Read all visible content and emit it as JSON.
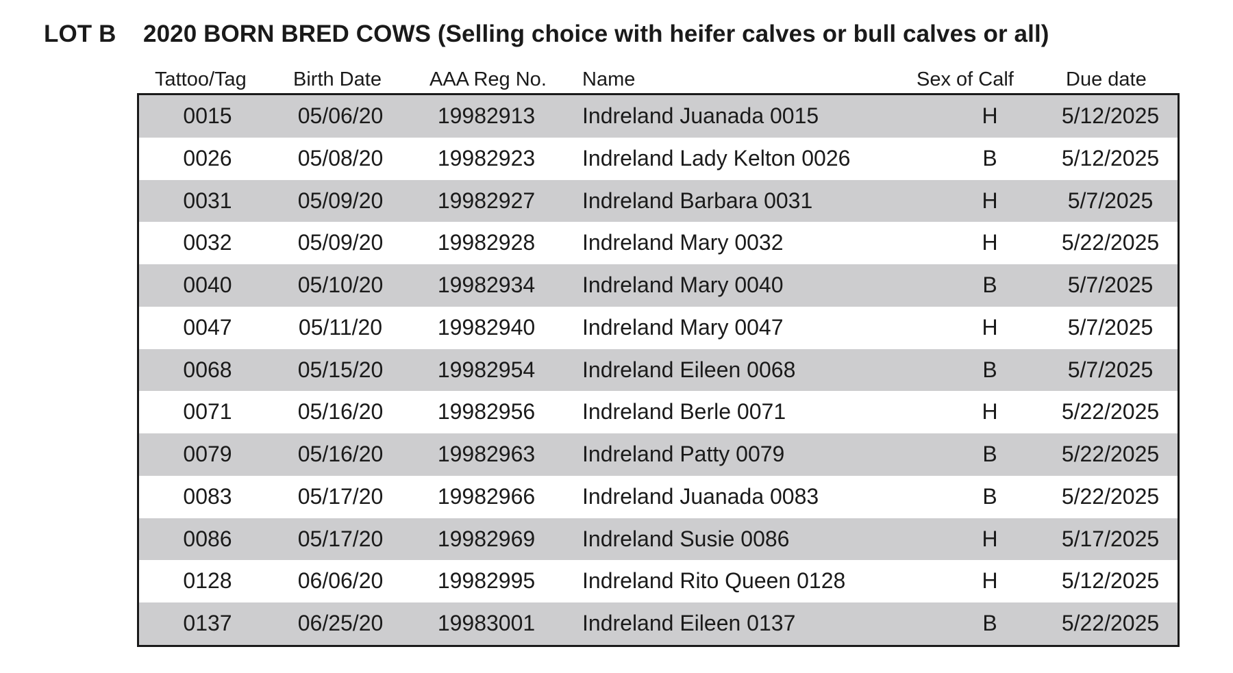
{
  "title": {
    "lot": "LOT B",
    "text": "2020 BORN BRED COWS (Selling choice with heifer calves or bull calves or all)"
  },
  "columns": [
    "Tattoo/Tag",
    "Birth Date",
    "AAA Reg No.",
    "Name",
    "Sex of Calf",
    "Due date"
  ],
  "rows": [
    {
      "tag": "0015",
      "birth": "05/06/20",
      "reg": "19982913",
      "name": "Indreland Juanada 0015",
      "sex": "H",
      "due": "5/12/2025"
    },
    {
      "tag": "0026",
      "birth": "05/08/20",
      "reg": "19982923",
      "name": "Indreland Lady Kelton 0026",
      "sex": "B",
      "due": "5/12/2025"
    },
    {
      "tag": "0031",
      "birth": "05/09/20",
      "reg": "19982927",
      "name": "Indreland Barbara 0031",
      "sex": "H",
      "due": "5/7/2025"
    },
    {
      "tag": "0032",
      "birth": "05/09/20",
      "reg": "19982928",
      "name": "Indreland Mary 0032",
      "sex": "H",
      "due": "5/22/2025"
    },
    {
      "tag": "0040",
      "birth": "05/10/20",
      "reg": "19982934",
      "name": "Indreland Mary 0040",
      "sex": "B",
      "due": "5/7/2025"
    },
    {
      "tag": "0047",
      "birth": "05/11/20",
      "reg": "19982940",
      "name": "Indreland Mary 0047",
      "sex": "H",
      "due": "5/7/2025"
    },
    {
      "tag": "0068",
      "birth": "05/15/20",
      "reg": "19982954",
      "name": "Indreland Eileen 0068",
      "sex": "B",
      "due": "5/7/2025"
    },
    {
      "tag": "0071",
      "birth": "05/16/20",
      "reg": "19982956",
      "name": "Indreland Berle 0071",
      "sex": "H",
      "due": "5/22/2025"
    },
    {
      "tag": "0079",
      "birth": "05/16/20",
      "reg": "19982963",
      "name": "Indreland Patty 0079",
      "sex": "B",
      "due": "5/22/2025"
    },
    {
      "tag": "0083",
      "birth": "05/17/20",
      "reg": "19982966",
      "name": "Indreland Juanada 0083",
      "sex": "B",
      "due": "5/22/2025"
    },
    {
      "tag": "0086",
      "birth": "05/17/20",
      "reg": "19982969",
      "name": "Indreland Susie 0086",
      "sex": "H",
      "due": "5/17/2025"
    },
    {
      "tag": "0128",
      "birth": "06/06/20",
      "reg": "19982995",
      "name": "Indreland Rito Queen 0128",
      "sex": "H",
      "due": "5/12/2025"
    },
    {
      "tag": "0137",
      "birth": "06/25/20",
      "reg": "19983001",
      "name": "Indreland Eileen 0137",
      "sex": "B",
      "due": "5/22/2025"
    }
  ]
}
